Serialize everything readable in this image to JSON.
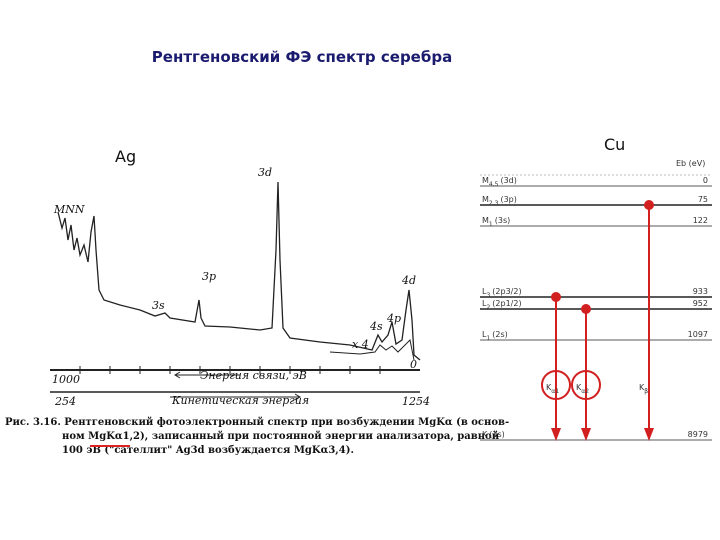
{
  "title": "Рентгеновский ФЭ спектр серебра",
  "left": {
    "label": "Ag",
    "peaks": [
      "MNN",
      "3d",
      "3p",
      "3s",
      "4d",
      "4p",
      "4s"
    ],
    "scale_note": "x 4",
    "binding_axis": {
      "start": "1000",
      "end": "0",
      "title": "Энергия связи, эВ"
    },
    "kinetic_axis": {
      "start": "254",
      "end": "1254",
      "title": "Кинетическая энергия"
    },
    "caption": [
      "Рис. 3.16. Рентгеновский фотоэлектронный спектр при возбуждении MgKα (в основ-",
      "ном MgKα1,2), записанный при постоянной энергии анализатора, равной",
      "100 эВ (\"сателлит\" Ag3d возбуждается MgKα3,4)."
    ]
  },
  "right": {
    "label": "Cu",
    "energy_header": "Eb (eV)",
    "levels": [
      {
        "shell": "M",
        "sub": "4,5",
        "orbital": "(3d)",
        "energy": "0"
      },
      {
        "shell": "M",
        "sub": "2,3",
        "orbital": "(3p)",
        "energy": "75"
      },
      {
        "shell": "M",
        "sub": "1",
        "orbital": "(3s)",
        "energy": "122"
      },
      {
        "shell": "L",
        "sub": "3",
        "orbital": "(2p3/2)",
        "energy": "933"
      },
      {
        "shell": "L",
        "sub": "2",
        "orbital": "(2p1/2)",
        "energy": "952"
      },
      {
        "shell": "L",
        "sub": "1",
        "orbital": "(2s)",
        "energy": "1097"
      },
      {
        "shell": "K",
        "sub": "",
        "orbital": "(1s)",
        "energy": "8979"
      }
    ],
    "transitions": [
      {
        "line": "K",
        "sub": "α1"
      },
      {
        "line": "K",
        "sub": "α2"
      },
      {
        "line": "K",
        "sub": "β"
      }
    ]
  }
}
